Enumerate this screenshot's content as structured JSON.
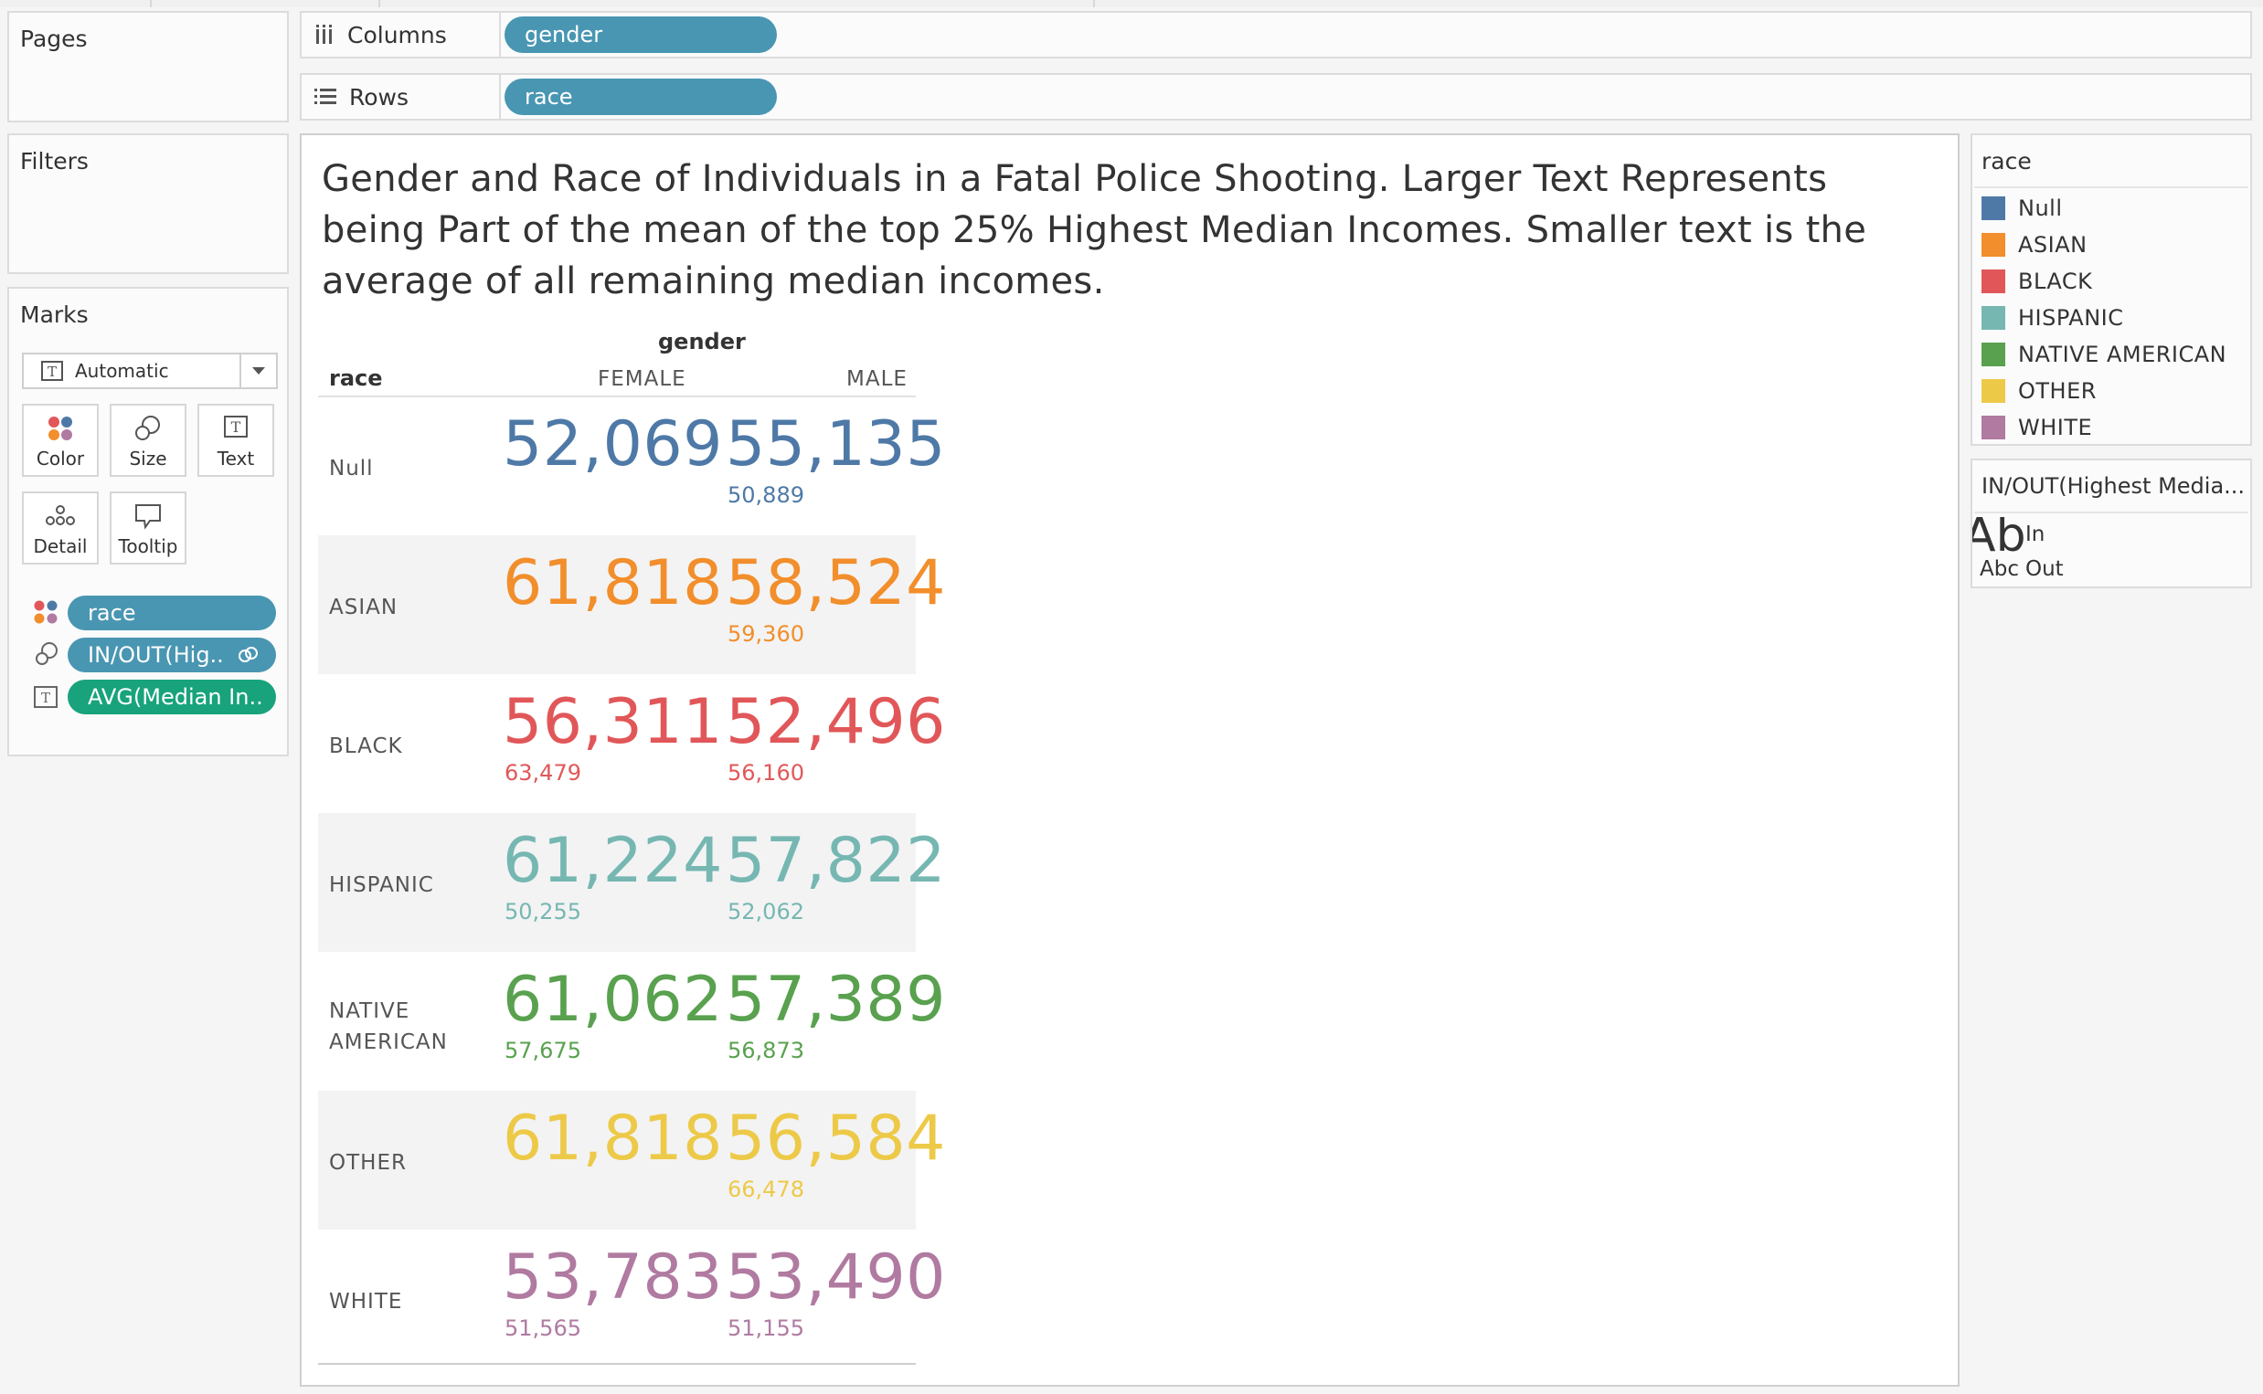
{
  "shelves": {
    "pages_title": "Pages",
    "filters_title": "Filters",
    "columns_label": "Columns",
    "rows_label": "Rows",
    "columns_pill": "gender",
    "rows_pill": "race"
  },
  "marks": {
    "title": "Marks",
    "mark_type": "Automatic",
    "buttons": [
      "Color",
      "Size",
      "Text",
      "Detail",
      "Tooltip"
    ],
    "fields": [
      {
        "label": "race",
        "icon": "color-icon"
      },
      {
        "label": "IN/OUT(Hig..",
        "icon": "size-icon"
      },
      {
        "label": "AVG(Median In..",
        "icon": "text-icon"
      }
    ]
  },
  "viz": {
    "title": "Gender and Race of Individuals in a Fatal Police Shooting. Larger Text Represents being Part of the mean of the top 25% Highest Median Incomes. Smaller text is the average of all remaining median incomes.",
    "column_header": "gender",
    "row_header": "race",
    "columns": [
      "FEMALE",
      "MALE"
    ]
  },
  "chart_data": {
    "type": "table",
    "title": "Gender and Race of Individuals in a Fatal Police Shooting. Larger Text Represents being Part of the mean of the top 25% Highest Median Incomes. Smaller text is the average of all remaining median incomes.",
    "rows": [
      {
        "race": "Null",
        "color": "#4e79a7",
        "female_in": "52,069",
        "female_out": "",
        "male_in": "55,135",
        "male_out": "50,889"
      },
      {
        "race": "ASIAN",
        "color": "#f28e2b",
        "female_in": "61,818",
        "female_out": "",
        "male_in": "58,524",
        "male_out": "59,360"
      },
      {
        "race": "BLACK",
        "color": "#e15759",
        "female_in": "56,311",
        "female_out": "63,479",
        "male_in": "52,496",
        "male_out": "56,160"
      },
      {
        "race": "HISPANIC",
        "color": "#76b7b2",
        "female_in": "61,224",
        "female_out": "50,255",
        "male_in": "57,822",
        "male_out": "52,062"
      },
      {
        "race": "NATIVE AMERICAN",
        "color": "#59a14f",
        "female_in": "61,062",
        "female_out": "57,675",
        "male_in": "57,389",
        "male_out": "56,873"
      },
      {
        "race": "OTHER",
        "color": "#edc948",
        "female_in": "61,818",
        "female_out": "",
        "male_in": "56,584",
        "male_out": "66,478"
      },
      {
        "race": "WHITE",
        "color": "#b07aa1",
        "female_in": "53,783",
        "female_out": "51,565",
        "male_in": "53,490",
        "male_out": "51,155"
      }
    ]
  },
  "race_legend": {
    "title": "race",
    "items": [
      {
        "label": "Null",
        "color": "#4e79a7"
      },
      {
        "label": "ASIAN",
        "color": "#f28e2b"
      },
      {
        "label": "BLACK",
        "color": "#e15759"
      },
      {
        "label": "HISPANIC",
        "color": "#76b7b2"
      },
      {
        "label": "NATIVE AMERICAN",
        "color": "#59a14f"
      },
      {
        "label": "OTHER",
        "color": "#edc948"
      },
      {
        "label": "WHITE",
        "color": "#b07aa1"
      }
    ]
  },
  "size_legend": {
    "title": "IN/OUT(Highest Media...",
    "big_sample": "Ab",
    "small_sample": "Abc",
    "in_label": "In",
    "out_label": "Out"
  }
}
